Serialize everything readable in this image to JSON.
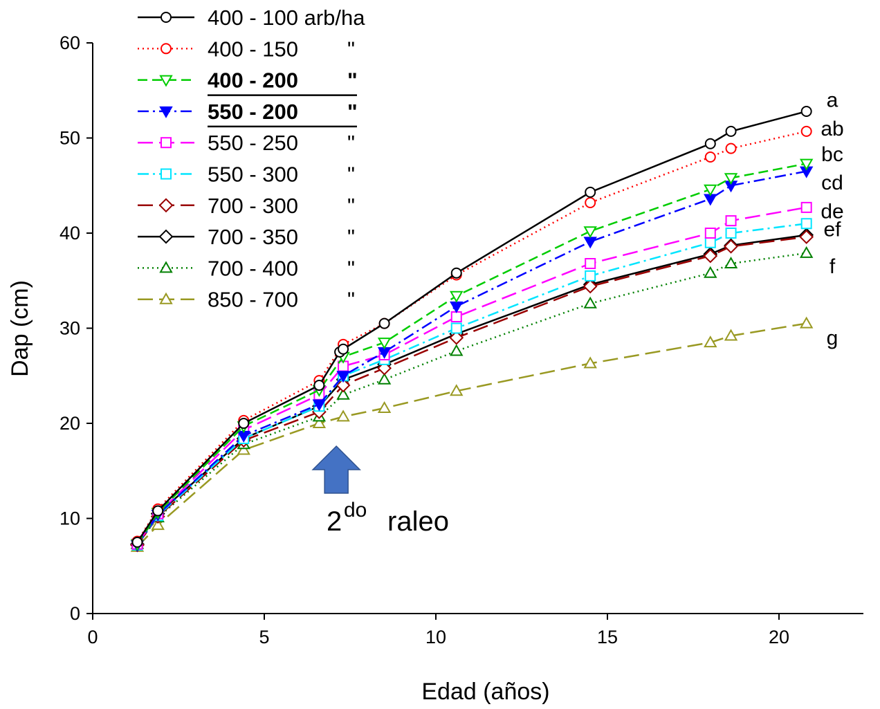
{
  "chart_data": {
    "type": "line",
    "xlabel": "Edad (años)",
    "ylabel": "Dap (cm)",
    "xlim": [
      0,
      23
    ],
    "ylim": [
      0,
      60
    ],
    "x_ticks": [
      0,
      5,
      10,
      15,
      20
    ],
    "y_ticks": [
      0,
      10,
      20,
      30,
      40,
      50,
      60
    ],
    "grid": false,
    "legend_position": "top-left",
    "annotation": {
      "base": "2",
      "superscript": "do",
      "text": "raleo",
      "arrow_x": 7.1,
      "color": "#4472c4"
    },
    "significance_letters": [
      {
        "text": "a",
        "y": 54
      },
      {
        "text": "ab",
        "y": 51
      },
      {
        "text": "bc",
        "y": 48.3
      },
      {
        "text": "cd",
        "y": 45.3
      },
      {
        "text": "de",
        "y": 42.3
      },
      {
        "text": "ef",
        "y": 40.4
      },
      {
        "text": "f",
        "y": 36.5
      },
      {
        "text": "g",
        "y": 29
      }
    ],
    "series": [
      {
        "name": "400 - 100 arb/ha",
        "color": "#000000",
        "dash": "solid",
        "marker": "circle",
        "fill": "none",
        "bold": false,
        "underline": false,
        "points": [
          [
            1.3,
            7.5
          ],
          [
            1.9,
            10.8
          ],
          [
            4.4,
            20
          ],
          [
            6.6,
            24
          ],
          [
            7.2,
            27.5
          ],
          [
            7.3,
            27.8
          ],
          [
            8.5,
            30.5
          ],
          [
            10.6,
            35.8
          ],
          [
            14.5,
            44.3
          ],
          [
            18.0,
            49.4
          ],
          [
            18.6,
            50.7
          ],
          [
            20.8,
            52.8
          ]
        ]
      },
      {
        "name": "400 - 150",
        "suffix": "\"",
        "color": "#ff0000",
        "dash": "dot",
        "marker": "circle",
        "fill": "none",
        "bold": false,
        "underline": false,
        "points": [
          [
            1.3,
            7.6
          ],
          [
            1.9,
            11.0
          ],
          [
            4.4,
            20.3
          ],
          [
            6.6,
            24.5
          ],
          [
            7.3,
            28.3
          ],
          [
            8.5,
            30.5
          ],
          [
            10.6,
            35.6
          ],
          [
            14.5,
            43.2
          ],
          [
            18.0,
            48.0
          ],
          [
            18.6,
            48.9
          ],
          [
            20.8,
            50.7
          ]
        ]
      },
      {
        "name": "400 - 200",
        "suffix": "\"",
        "color": "#00cc00",
        "dash": "dash",
        "marker": "triangle-down",
        "fill": "none",
        "bold": true,
        "underline": true,
        "points": [
          [
            1.3,
            7.3
          ],
          [
            1.9,
            10.6
          ],
          [
            4.4,
            19.7
          ],
          [
            6.6,
            23.5
          ],
          [
            7.3,
            27.0
          ],
          [
            8.5,
            28.5
          ],
          [
            10.6,
            33.4
          ],
          [
            14.5,
            40.2
          ],
          [
            18.0,
            44.6
          ],
          [
            18.6,
            45.8
          ],
          [
            20.8,
            47.3
          ]
        ]
      },
      {
        "name": "550 - 200",
        "suffix": "\"",
        "color": "#0000ff",
        "dash": "dashdot",
        "marker": "triangle-down",
        "fill": "#0000ff",
        "bold": true,
        "underline": true,
        "points": [
          [
            1.3,
            7.2
          ],
          [
            1.9,
            10.4
          ],
          [
            4.4,
            18.7
          ],
          [
            6.6,
            22.0
          ],
          [
            7.3,
            25.0
          ],
          [
            8.5,
            27.5
          ],
          [
            10.6,
            32.3
          ],
          [
            14.5,
            39.1
          ],
          [
            18.0,
            43.6
          ],
          [
            18.6,
            45.0
          ],
          [
            20.8,
            46.5
          ]
        ]
      },
      {
        "name": "550 - 250",
        "suffix": "\"",
        "color": "#ff00ff",
        "dash": "longdash",
        "marker": "square",
        "fill": "none",
        "bold": false,
        "underline": false,
        "points": [
          [
            1.3,
            7.3
          ],
          [
            1.9,
            10.5
          ],
          [
            4.4,
            19.3
          ],
          [
            6.6,
            23.0
          ],
          [
            7.3,
            26.0
          ],
          [
            8.5,
            27.2
          ],
          [
            10.6,
            31.2
          ],
          [
            14.5,
            36.8
          ],
          [
            18.0,
            40.0
          ],
          [
            18.6,
            41.3
          ],
          [
            20.8,
            42.7
          ]
        ]
      },
      {
        "name": "550 - 300",
        "suffix": "\"",
        "color": "#00e5ff",
        "dash": "dashdot",
        "marker": "square",
        "fill": "none",
        "bold": false,
        "underline": false,
        "points": [
          [
            1.3,
            7.2
          ],
          [
            1.9,
            10.3
          ],
          [
            4.4,
            18.4
          ],
          [
            6.6,
            21.8
          ],
          [
            7.3,
            25.0
          ],
          [
            8.5,
            26.7
          ],
          [
            10.6,
            30.0
          ],
          [
            14.5,
            35.5
          ],
          [
            18.0,
            39.0
          ],
          [
            18.6,
            40.0
          ],
          [
            20.8,
            41.0
          ]
        ]
      },
      {
        "name": "700 - 300",
        "suffix": "\"",
        "color": "#990000",
        "dash": "longdash",
        "marker": "diamond",
        "fill": "none",
        "bold": false,
        "underline": false,
        "points": [
          [
            1.3,
            7.2
          ],
          [
            1.9,
            10.2
          ],
          [
            4.4,
            18.2
          ],
          [
            6.6,
            21.2
          ],
          [
            7.3,
            24.0
          ],
          [
            8.5,
            25.8
          ],
          [
            10.6,
            29.0
          ],
          [
            14.5,
            34.4
          ],
          [
            18.0,
            37.6
          ],
          [
            18.6,
            38.6
          ],
          [
            20.8,
            39.6
          ]
        ]
      },
      {
        "name": "700 - 350",
        "suffix": "\"",
        "color": "#000000",
        "dash": "solid",
        "marker": "diamond",
        "fill": "none",
        "bold": false,
        "underline": false,
        "points": [
          [
            1.3,
            7.3
          ],
          [
            1.9,
            10.5
          ],
          [
            4.4,
            18.4
          ],
          [
            6.6,
            21.8
          ],
          [
            7.3,
            24.6
          ],
          [
            8.5,
            26.2
          ],
          [
            10.6,
            29.4
          ],
          [
            14.5,
            34.6
          ],
          [
            18.0,
            37.8
          ],
          [
            18.6,
            38.7
          ],
          [
            20.8,
            39.8
          ]
        ]
      },
      {
        "name": "700 - 400",
        "suffix": "\"",
        "color": "#008000",
        "dash": "dot",
        "marker": "triangle-up",
        "fill": "none",
        "bold": false,
        "underline": false,
        "points": [
          [
            1.3,
            7.3
          ],
          [
            1.9,
            10.1
          ],
          [
            4.4,
            17.8
          ],
          [
            6.6,
            20.7
          ],
          [
            7.3,
            23.0
          ],
          [
            8.5,
            24.6
          ],
          [
            10.6,
            27.6
          ],
          [
            14.5,
            32.6
          ],
          [
            18.0,
            35.8
          ],
          [
            18.6,
            36.8
          ],
          [
            20.8,
            37.9
          ]
        ]
      },
      {
        "name": "850 - 700",
        "suffix": "\"",
        "color": "#999922",
        "dash": "longdash",
        "marker": "triangle-up",
        "fill": "none",
        "bold": false,
        "underline": false,
        "points": [
          [
            1.3,
            7.0
          ],
          [
            1.9,
            9.3
          ],
          [
            4.4,
            17.2
          ],
          [
            6.6,
            20.0
          ],
          [
            7.3,
            20.7
          ],
          [
            8.5,
            21.6
          ],
          [
            10.6,
            23.4
          ],
          [
            14.5,
            26.3
          ],
          [
            18.0,
            28.5
          ],
          [
            18.6,
            29.2
          ],
          [
            20.8,
            30.5
          ]
        ]
      }
    ]
  }
}
